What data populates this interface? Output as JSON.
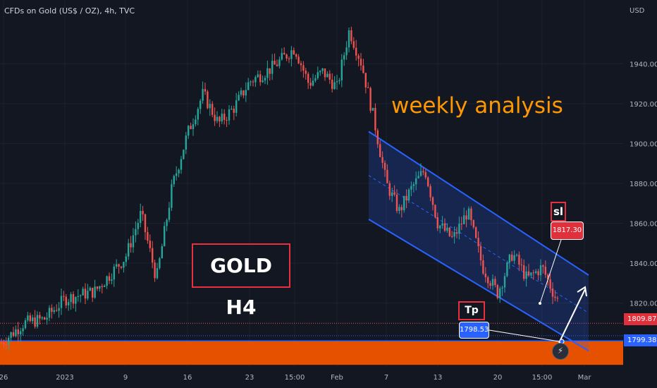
{
  "header": {
    "title": "CFDs on Gold (US$ / OZ), 4h, TVC",
    "currency": "USD"
  },
  "price_labels": {
    "red_line": "1809.87",
    "blue_line": "1799.38"
  },
  "annotations": {
    "weekly": "weekly analysis",
    "gold": "GOLD H4",
    "sl_label": "sl",
    "sl_price": "1817.30",
    "tp_label": "Tp 1",
    "tp_price": "1798.53"
  },
  "icons": {
    "alert": "lightning-alert-icon"
  },
  "colors": {
    "background": "#131722",
    "up": "#26a69a",
    "down": "#ef5350",
    "channel": "#2962ff",
    "zone": "#e65100",
    "annotation_text": "#ff9800",
    "box_border": "#e8303f"
  },
  "chart_data": {
    "type": "candlestick",
    "ylim": [
      1788,
      1972
    ],
    "y_ticks": [
      1820,
      1840,
      1860,
      1880,
      1900,
      1920,
      1940
    ],
    "x_ticks": [
      "26",
      "2023",
      "9",
      "16",
      "23",
      "15:00",
      "Feb",
      "7",
      "13",
      "20",
      "15:00",
      "Mar"
    ],
    "close_path": [
      [
        "26",
        1800
      ],
      [
        "26",
        1810
      ],
      [
        "26",
        1812
      ],
      [
        "2023",
        1822
      ],
      [
        "2023",
        1826
      ],
      [
        "9",
        1843
      ],
      [
        "9",
        1865
      ],
      [
        "9",
        1832
      ],
      [
        "9",
        1878
      ],
      [
        "16",
        1905
      ],
      [
        "16",
        1925
      ],
      [
        "16",
        1910
      ],
      [
        "16",
        1918
      ],
      [
        "23",
        1931
      ],
      [
        "23",
        1938
      ],
      [
        "15:00",
        1948
      ],
      [
        "15:00",
        1930
      ],
      [
        "15:00",
        1936
      ],
      [
        "Feb",
        1928
      ],
      [
        "Feb",
        1957
      ],
      [
        "Feb",
        1940
      ],
      [
        "Feb",
        1912
      ],
      [
        "7",
        1880
      ],
      [
        "7",
        1866
      ],
      [
        "7",
        1878
      ],
      [
        "7",
        1887
      ],
      [
        "13",
        1860
      ],
      [
        "13",
        1852
      ],
      [
        "13",
        1866
      ],
      [
        "13",
        1838
      ],
      [
        "20",
        1825
      ],
      [
        "20",
        1845
      ],
      [
        "20",
        1832
      ],
      [
        "15:00",
        1838
      ],
      [
        "15:00",
        1822
      ],
      [
        "15:00",
        1817
      ],
      [
        "Mar",
        1809
      ]
    ],
    "channel": {
      "upper": [
        [
          1906,
          "7"
        ],
        [
          1834,
          "Mar"
        ]
      ],
      "lower": [
        [
          1862,
          "7"
        ],
        [
          1796,
          "Mar"
        ]
      ]
    },
    "zone": [
      1789,
      1801
    ],
    "horizontal_lines": [
      1809.87,
      1799.38
    ]
  }
}
